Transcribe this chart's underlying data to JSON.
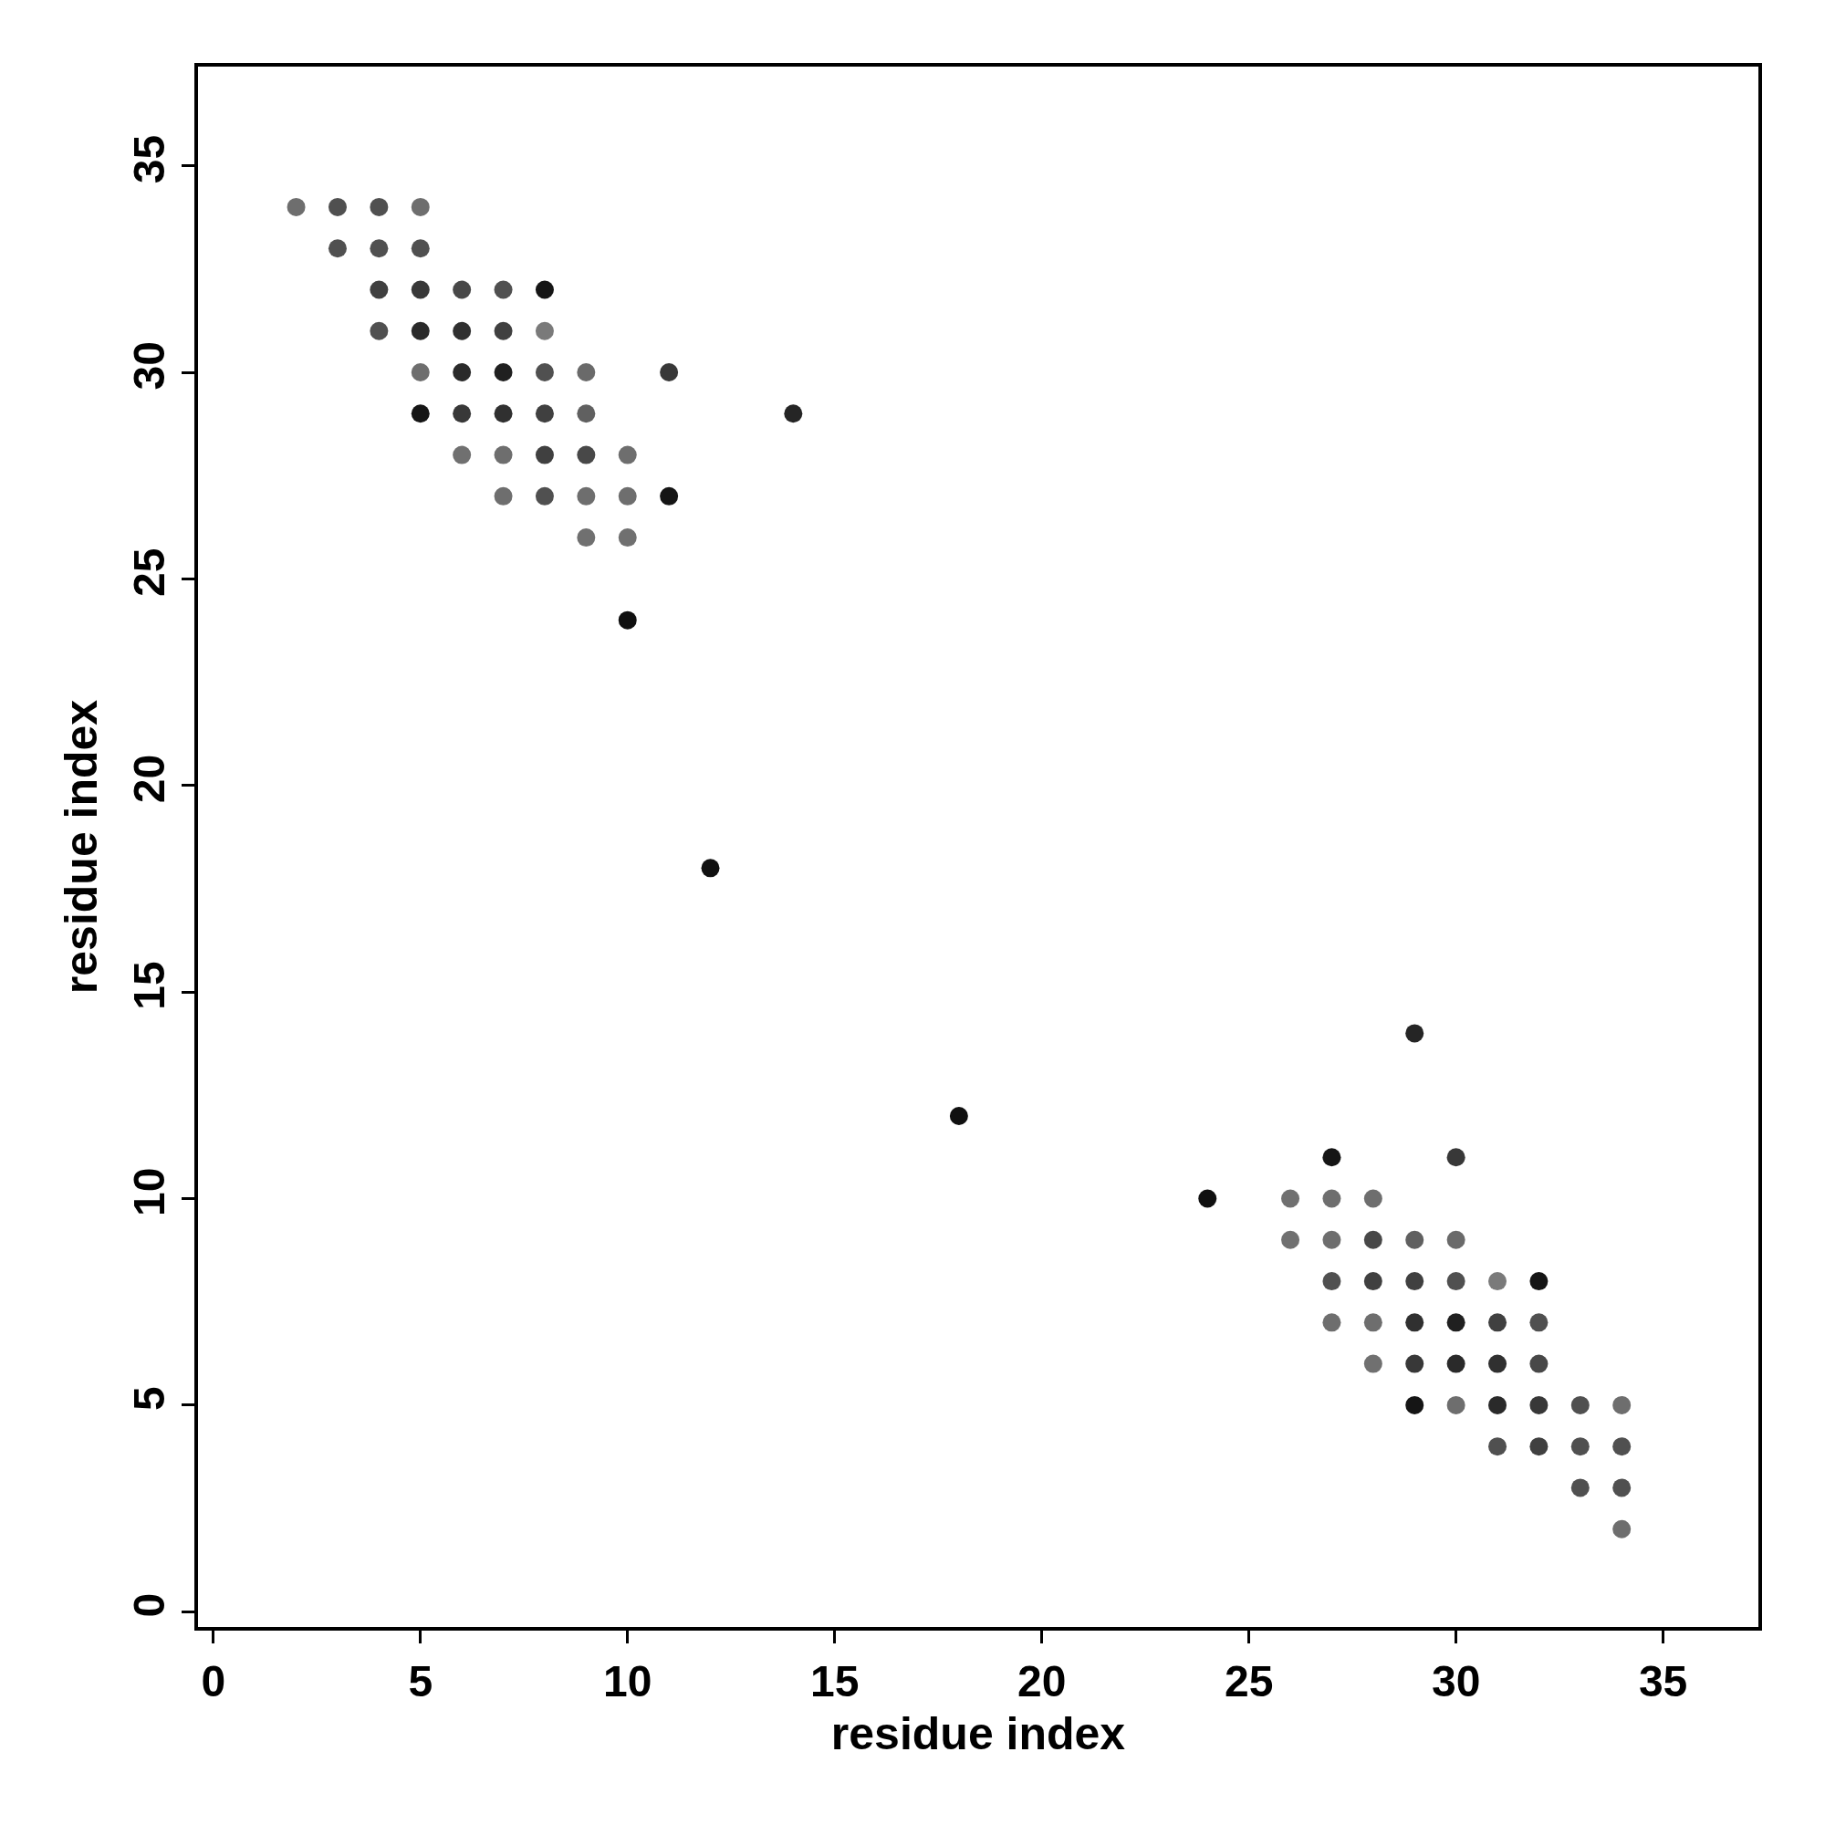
{
  "chart_data": {
    "type": "scatter",
    "xlabel": "residue index",
    "ylabel": "residue index",
    "x": [
      2,
      3,
      4,
      5,
      3,
      4,
      5,
      4,
      5,
      6,
      7,
      8,
      4,
      5,
      6,
      7,
      8,
      5,
      6,
      7,
      8,
      9,
      11,
      5,
      6,
      7,
      8,
      9,
      14,
      6,
      7,
      8,
      9,
      10,
      7,
      8,
      9,
      10,
      11,
      9,
      10,
      10,
      12,
      34,
      34,
      34,
      34,
      33,
      33,
      33,
      32,
      32,
      32,
      32,
      32,
      31,
      31,
      31,
      31,
      31,
      30,
      30,
      30,
      30,
      30,
      30,
      29,
      29,
      29,
      29,
      29,
      29,
      28,
      28,
      28,
      28,
      28,
      27,
      27,
      27,
      27,
      27,
      26,
      26,
      24,
      18
    ],
    "values": [
      34,
      34,
      34,
      34,
      33,
      33,
      33,
      32,
      32,
      32,
      32,
      32,
      31,
      31,
      31,
      31,
      31,
      30,
      30,
      30,
      30,
      30,
      30,
      29,
      29,
      29,
      29,
      29,
      29,
      28,
      28,
      28,
      28,
      28,
      27,
      27,
      27,
      27,
      27,
      26,
      26,
      24,
      18,
      2,
      3,
      4,
      5,
      3,
      4,
      5,
      4,
      5,
      6,
      7,
      8,
      4,
      5,
      6,
      7,
      8,
      5,
      6,
      7,
      8,
      9,
      11,
      5,
      6,
      7,
      8,
      9,
      14,
      6,
      7,
      8,
      9,
      10,
      7,
      8,
      9,
      10,
      11,
      9,
      10,
      10,
      12
    ],
    "colors": [
      "#6e6e6e",
      "#505050",
      "#505050",
      "#6e6e6e",
      "#505050",
      "#505050",
      "#505050",
      "#404040",
      "#383838",
      "#484848",
      "#505050",
      "#151515",
      "#505050",
      "#2a2a2a",
      "#303030",
      "#404040",
      "#7a7a7a",
      "#6e6e6e",
      "#2a2a2a",
      "#202020",
      "#505050",
      "#6a6a6a",
      "#383838",
      "#151515",
      "#383838",
      "#303030",
      "#404040",
      "#606060",
      "#252525",
      "#707070",
      "#6e6e6e",
      "#404040",
      "#484848",
      "#6e6e6e",
      "#6e6e6e",
      "#505050",
      "#6e6e6e",
      "#6e6e6e",
      "#151515",
      "#707070",
      "#707070",
      "#101010",
      "#101010",
      "#6e6e6e",
      "#505050",
      "#505050",
      "#6e6e6e",
      "#505050",
      "#505050",
      "#505050",
      "#404040",
      "#383838",
      "#484848",
      "#505050",
      "#151515",
      "#505050",
      "#2a2a2a",
      "#303030",
      "#404040",
      "#7a7a7a",
      "#6e6e6e",
      "#2a2a2a",
      "#202020",
      "#505050",
      "#6a6a6a",
      "#383838",
      "#151515",
      "#383838",
      "#303030",
      "#404040",
      "#606060",
      "#252525",
      "#707070",
      "#6e6e6e",
      "#404040",
      "#484848",
      "#6e6e6e",
      "#6e6e6e",
      "#505050",
      "#6e6e6e",
      "#6e6e6e",
      "#151515",
      "#707070",
      "#707070",
      "#101010",
      "#101010"
    ],
    "xlim": [
      -0.37,
      37.3
    ],
    "ylim": [
      -0.37,
      37.4
    ],
    "xticks": [
      0,
      5,
      10,
      15,
      20,
      25,
      30,
      35
    ],
    "yticks": [
      0,
      5,
      10,
      15,
      20,
      25,
      30,
      35
    ],
    "marker": "circle"
  }
}
